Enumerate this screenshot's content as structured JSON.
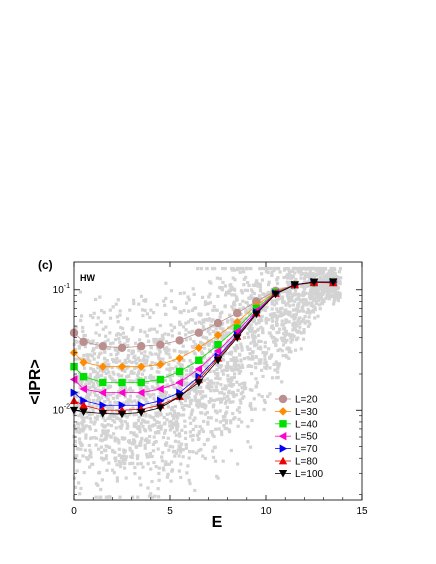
{
  "chart_data": {
    "type": "scatter",
    "panel_label": "(c)",
    "annotation": "HW",
    "xlabel": "E",
    "ylabel": "<IPR>",
    "xlim": [
      0,
      15
    ],
    "ylim": [
      0.0018,
      0.17
    ],
    "yscale": "log",
    "x_ticks": [
      0,
      5,
      10,
      15
    ],
    "y_ticks": [
      0.01,
      0.1
    ],
    "y_tick_labels": [
      {
        "base": "10",
        "exp": "-2"
      },
      {
        "base": "10",
        "exp": "-1"
      }
    ],
    "grid": false,
    "legend_position": "lower-right",
    "background_scatter": {
      "color": "#d3d3d3",
      "x_range": [
        0,
        14
      ],
      "y_range": [
        0.002,
        0.13
      ]
    },
    "x": [
      0,
      0.5,
      1.5,
      2.5,
      3.5,
      4.5,
      5.5,
      6.5,
      7.5,
      8.5,
      9.5,
      10.5,
      11.5,
      12.5,
      13.5
    ],
    "series": [
      {
        "name": "L=20",
        "color": "#bc8f8f",
        "marker": "circle",
        "values": [
          0.044,
          0.037,
          0.034,
          0.033,
          0.034,
          0.035,
          0.038,
          0.044,
          0.053,
          0.064,
          0.08,
          0.098,
          0.11,
          0.114,
          0.116
        ]
      },
      {
        "name": "L=30",
        "color": "#ff8c00",
        "marker": "diamond",
        "values": [
          0.03,
          0.025,
          0.023,
          0.023,
          0.023,
          0.024,
          0.027,
          0.033,
          0.042,
          0.054,
          0.074,
          0.096,
          0.11,
          0.115,
          0.116
        ]
      },
      {
        "name": "L=40",
        "color": "#00e000",
        "marker": "square",
        "values": [
          0.023,
          0.019,
          0.017,
          0.017,
          0.017,
          0.018,
          0.021,
          0.026,
          0.035,
          0.048,
          0.07,
          0.095,
          0.11,
          0.115,
          0.116
        ]
      },
      {
        "name": "L=50",
        "color": "#ff00cc",
        "marker": "triangle-left",
        "values": [
          0.018,
          0.015,
          0.014,
          0.014,
          0.014,
          0.015,
          0.017,
          0.022,
          0.031,
          0.045,
          0.067,
          0.094,
          0.11,
          0.115,
          0.116
        ]
      },
      {
        "name": "L=70",
        "color": "#0000ff",
        "marker": "triangle-right",
        "values": [
          0.014,
          0.012,
          0.011,
          0.011,
          0.011,
          0.012,
          0.014,
          0.019,
          0.028,
          0.042,
          0.065,
          0.093,
          0.11,
          0.116,
          0.116
        ]
      },
      {
        "name": "L=80",
        "color": "#ee0000",
        "marker": "triangle-up",
        "values": [
          0.012,
          0.011,
          0.01,
          0.01,
          0.0102,
          0.011,
          0.013,
          0.018,
          0.027,
          0.041,
          0.064,
          0.093,
          0.11,
          0.115,
          0.114
        ]
      },
      {
        "name": "L=100",
        "color": "#000000",
        "marker": "triangle-down",
        "values": [
          0.01,
          0.0097,
          0.0094,
          0.0093,
          0.0096,
          0.0105,
          0.013,
          0.017,
          0.026,
          0.04,
          0.063,
          0.092,
          0.11,
          0.116,
          0.116
        ]
      }
    ]
  }
}
